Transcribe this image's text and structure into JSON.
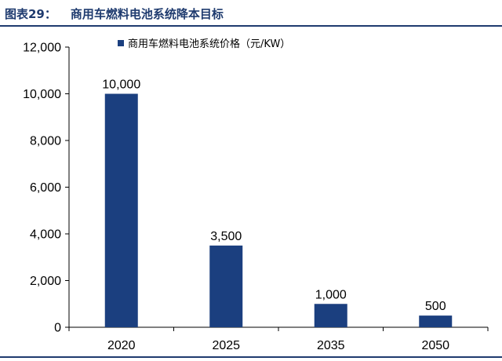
{
  "figure": {
    "label": "图表29：",
    "title": "商用车燃料电池系统降本目标"
  },
  "colors": {
    "bar": "#1b3f7f",
    "header": "#1f3b6f",
    "axis": "#000000"
  },
  "chart_data": {
    "type": "bar",
    "categories": [
      "2020",
      "2025",
      "2035",
      "2050"
    ],
    "series": [
      {
        "name": "商用车燃料电池系统价格（元/KW）",
        "values": [
          10000,
          3500,
          1000,
          500
        ]
      }
    ],
    "data_labels": [
      "10,000",
      "3,500",
      "1,000",
      "500"
    ],
    "yticks": [
      0,
      2000,
      4000,
      6000,
      8000,
      10000,
      12000
    ],
    "ytick_labels": [
      "0",
      "2,000",
      "4,000",
      "6,000",
      "8,000",
      "10,000",
      "12,000"
    ],
    "ylim": [
      0,
      12000
    ],
    "xlabel": "",
    "ylabel": "",
    "grid": false,
    "legend_position": "top-left"
  }
}
